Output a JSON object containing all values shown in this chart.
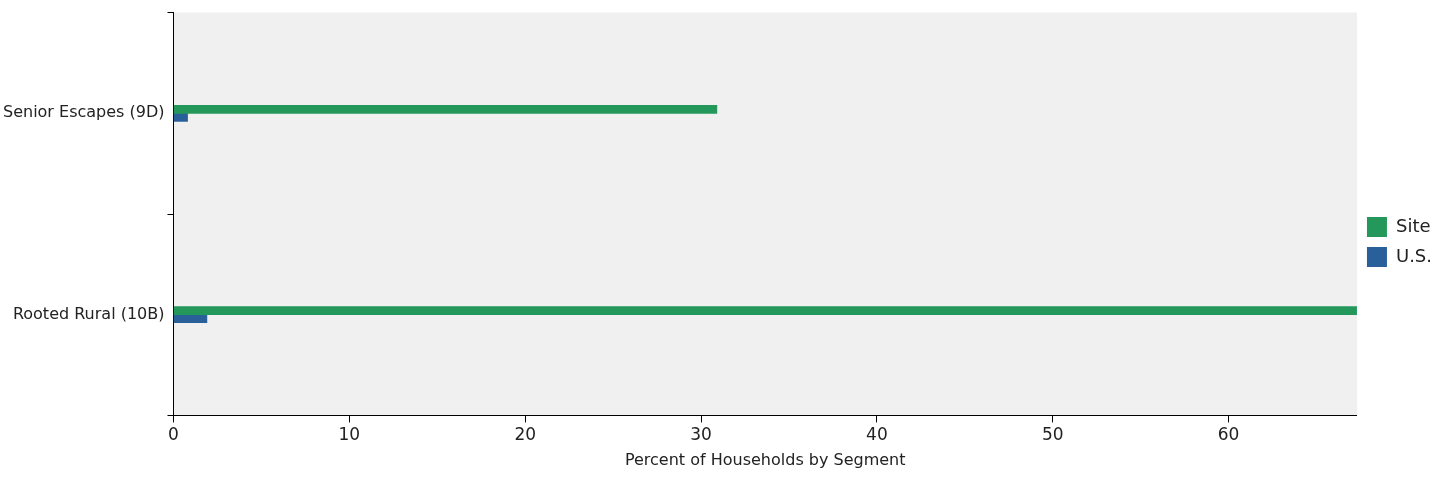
{
  "chart_data": {
    "type": "bar",
    "orientation": "horizontal",
    "xlabel": "Percent of Households by Segment",
    "categories": [
      "Senior Escapes (9D)",
      "Rooted Rural (10B)"
    ],
    "series": [
      {
        "name": "Site",
        "color": "#23985a",
        "values": [
          30.9,
          67.3
        ]
      },
      {
        "name": "U.S.",
        "color": "#2a6099",
        "values": [
          0.8,
          1.9
        ]
      }
    ],
    "xlim": [
      0,
      67.3
    ],
    "xticks": [
      0,
      10,
      20,
      30,
      40,
      50,
      60
    ],
    "grid": false,
    "legend": "right"
  }
}
